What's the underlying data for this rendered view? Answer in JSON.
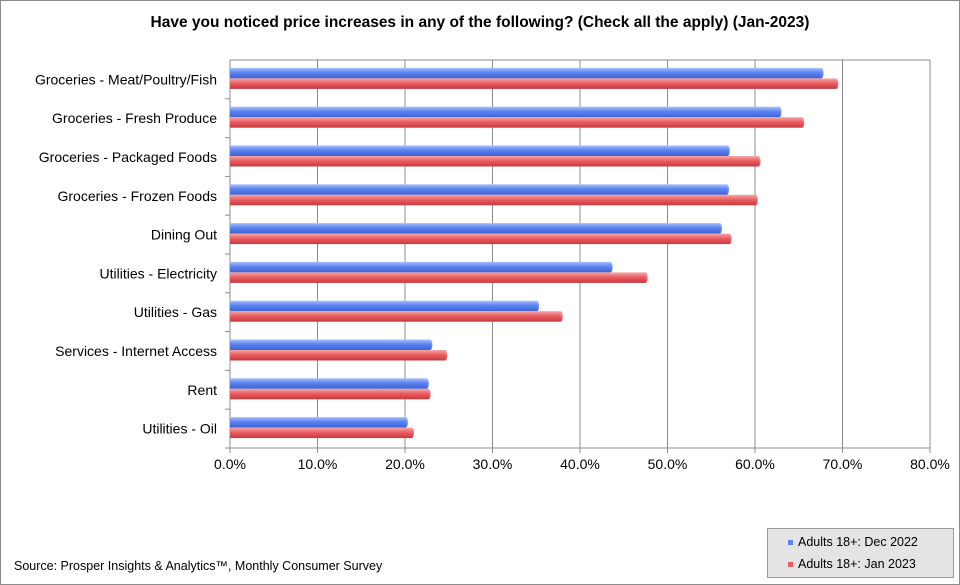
{
  "chart_data": {
    "type": "bar",
    "orientation": "horizontal",
    "title": "Have you noticed price increases in any of the following? (Check all the apply) (Jan-2023)",
    "categories": [
      "Groceries - Meat/Poultry/Fish",
      "Groceries - Fresh Produce",
      "Groceries - Packaged Foods",
      "Groceries - Frozen Foods",
      "Dining Out",
      "Utilities - Electricity",
      "Utilities - Gas",
      "Services - Internet Access",
      "Rent",
      "Utilities - Oil"
    ],
    "series": [
      {
        "name": "Adults 18+: Dec 2022",
        "color": "#5b83f0",
        "values": [
          67.6,
          62.8,
          56.9,
          56.8,
          56.0,
          43.5,
          35.1,
          22.9,
          22.5,
          20.1
        ]
      },
      {
        "name": "Adults 18+: Jan 2023",
        "color": "#ea5f63",
        "values": [
          69.3,
          65.4,
          60.4,
          60.1,
          57.1,
          47.5,
          37.8,
          24.6,
          22.7,
          20.8
        ]
      }
    ],
    "xlim": [
      0,
      80
    ],
    "xticks": [
      "0.0%",
      "10.0%",
      "20.0%",
      "30.0%",
      "40.0%",
      "50.0%",
      "60.0%",
      "70.0%",
      "80.0%"
    ],
    "grid": "vertical",
    "legend_position": "bottom-right"
  },
  "source": "Source: Prosper Insights & Analytics™, Monthly Consumer Survey"
}
